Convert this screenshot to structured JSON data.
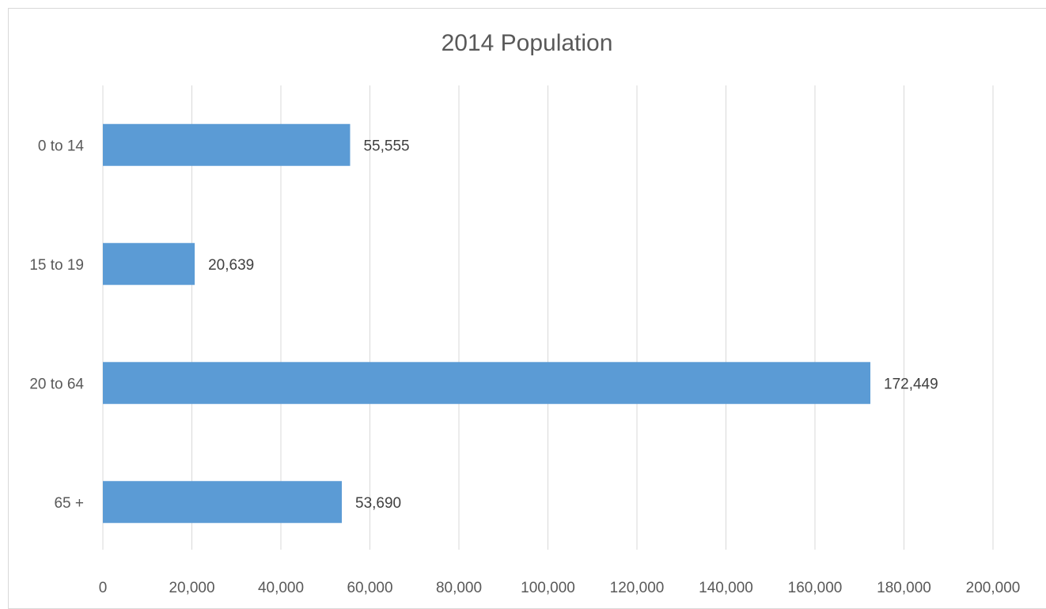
{
  "chart_data": {
    "type": "bar",
    "orientation": "horizontal",
    "title": "2014 Population",
    "categories": [
      "0 to 14",
      "15 to 19",
      "20 to 64",
      "65 +"
    ],
    "values": [
      55555,
      20639,
      172449,
      53690
    ],
    "data_labels": [
      "55,555",
      "20,639",
      "172,449",
      "53,690"
    ],
    "xlim": [
      0,
      200000
    ],
    "x_ticks": [
      0,
      20000,
      40000,
      60000,
      80000,
      100000,
      120000,
      140000,
      160000,
      180000,
      200000
    ],
    "x_tick_labels": [
      "0",
      "20,000",
      "40,000",
      "60,000",
      "80,000",
      "100,000",
      "120,000",
      "140,000",
      "160,000",
      "180,000",
      "200,000"
    ],
    "grid": true,
    "legend": "none",
    "colors": {
      "bar": "#5b9bd5",
      "grid": "#d9d9d9",
      "text": "#595959"
    }
  }
}
